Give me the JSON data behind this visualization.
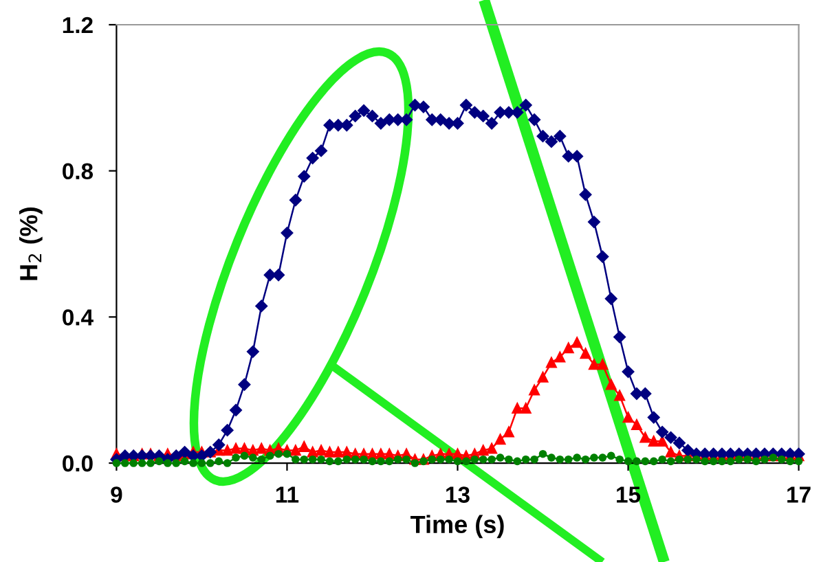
{
  "chart_data": {
    "type": "line",
    "xlabel": "Time (s)",
    "ylabel": "H$_{2}$ (%)",
    "x": [
      9.0,
      9.1,
      9.2,
      9.3,
      9.4,
      9.5,
      9.6,
      9.7,
      9.8,
      9.9,
      10.0,
      10.1,
      10.2,
      10.3,
      10.4,
      10.5,
      10.6,
      10.7,
      10.8,
      10.9,
      11.0,
      11.1,
      11.2,
      11.3,
      11.4,
      11.5,
      11.6,
      11.7,
      11.8,
      11.9,
      12.0,
      12.1,
      12.2,
      12.3,
      12.4,
      12.5,
      12.6,
      12.7,
      12.8,
      12.9,
      13.0,
      13.1,
      13.2,
      13.3,
      13.4,
      13.5,
      13.6,
      13.7,
      13.8,
      13.9,
      14.0,
      14.1,
      14.2,
      14.3,
      14.4,
      14.5,
      14.6,
      14.7,
      14.8,
      14.9,
      15.0,
      15.1,
      15.2,
      15.3,
      15.4,
      15.5,
      15.6,
      15.7,
      15.8,
      15.9,
      16.0,
      16.1,
      16.2,
      16.3,
      16.4,
      16.5,
      16.6,
      16.7,
      16.8,
      16.9,
      17.0
    ],
    "series": [
      {
        "color": "#000080",
        "marker": "diamond",
        "values": [
          0.01,
          0.02,
          0.02,
          0.02,
          0.02,
          0.02,
          0.01,
          0.02,
          0.03,
          0.02,
          0.02,
          0.03,
          0.05,
          0.09,
          0.145,
          0.215,
          0.305,
          0.43,
          0.515,
          0.515,
          0.63,
          0.72,
          0.785,
          0.835,
          0.855,
          0.925,
          0.925,
          0.925,
          0.95,
          0.965,
          0.95,
          0.93,
          0.94,
          0.94,
          0.94,
          0.98,
          0.975,
          0.94,
          0.94,
          0.93,
          0.93,
          0.98,
          0.96,
          0.95,
          0.93,
          0.96,
          0.96,
          0.96,
          0.98,
          0.94,
          0.895,
          0.88,
          0.895,
          0.84,
          0.84,
          0.735,
          0.66,
          0.565,
          0.45,
          0.345,
          0.25,
          0.19,
          0.19,
          0.125,
          0.085,
          0.07,
          0.055,
          0.035,
          0.025,
          0.025,
          0.025,
          0.025,
          0.025,
          0.025,
          0.025,
          0.025,
          0.025,
          0.025,
          0.025,
          0.025,
          0.025
        ]
      },
      {
        "color": "#ff0000",
        "marker": "triangle",
        "values": [
          0.025,
          0.02,
          0.02,
          0.025,
          0.025,
          0.02,
          0.025,
          0.02,
          0.025,
          0.03,
          0.03,
          0.03,
          0.035,
          0.035,
          0.04,
          0.04,
          0.035,
          0.04,
          0.035,
          0.04,
          0.035,
          0.035,
          0.045,
          0.03,
          0.035,
          0.03,
          0.03,
          0.03,
          0.025,
          0.025,
          0.025,
          0.025,
          0.025,
          0.02,
          0.025,
          0.01,
          0.01,
          0.02,
          0.025,
          0.025,
          0.025,
          0.02,
          0.025,
          0.035,
          0.04,
          0.065,
          0.085,
          0.15,
          0.15,
          0.2,
          0.235,
          0.275,
          0.29,
          0.315,
          0.33,
          0.3,
          0.27,
          0.27,
          0.215,
          0.185,
          0.125,
          0.105,
          0.07,
          0.06,
          0.06,
          0.03,
          0.02,
          0.02,
          0.02,
          0.02,
          0.02,
          0.02,
          0.02,
          0.025,
          0.02,
          0.02,
          0.02,
          0.02,
          0.02,
          0.02,
          0.02
        ]
      },
      {
        "color": "#008000",
        "marker": "circle",
        "values": [
          0.0,
          0.0,
          0.0,
          0.0,
          0.0,
          0.005,
          0.0,
          0.0,
          0.005,
          0.0,
          0.0,
          0.0,
          0.005,
          0.0,
          0.015,
          0.02,
          0.015,
          0.01,
          0.02,
          0.025,
          0.025,
          0.01,
          0.01,
          0.01,
          0.01,
          0.005,
          0.005,
          0.01,
          0.01,
          0.01,
          0.005,
          0.005,
          0.005,
          0.01,
          0.01,
          0.0,
          0.005,
          0.01,
          0.01,
          0.01,
          0.005,
          0.005,
          0.01,
          0.01,
          0.01,
          0.015,
          0.01,
          0.005,
          0.01,
          0.01,
          0.025,
          0.015,
          0.01,
          0.01,
          0.015,
          0.01,
          0.015,
          0.015,
          0.02,
          0.01,
          0.005,
          0.005,
          0.005,
          0.005,
          0.01,
          0.005,
          0.01,
          0.01,
          0.01,
          0.005,
          0.005,
          0.005,
          0.005,
          0.01,
          0.01,
          0.005,
          0.01,
          0.015,
          0.01,
          0.005,
          0.005
        ]
      }
    ],
    "xlim": [
      9,
      17
    ],
    "xticks": [
      9,
      11,
      13,
      15,
      17
    ],
    "ylim": [
      0,
      1.2
    ],
    "yticks": [
      {
        "value": 0,
        "label": "0.0"
      },
      {
        "value": 0.4,
        "label": "0.4"
      },
      {
        "value": 0.8,
        "label": "0.8"
      },
      {
        "value": 1.2,
        "label": "1.2"
      }
    ],
    "grid": false,
    "legend": false,
    "line_style": "solid"
  }
}
